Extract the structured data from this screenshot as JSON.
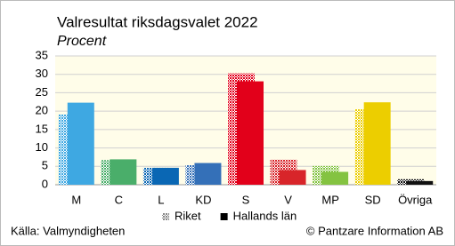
{
  "chart_data": {
    "type": "bar",
    "title": "Valresultat riksdagsvalet 2022",
    "subtitle": "Procent",
    "categories": [
      "M",
      "C",
      "L",
      "KD",
      "S",
      "V",
      "MP",
      "SD",
      "Övriga"
    ],
    "category_colors": [
      "#3ea8e2",
      "#4aae6a",
      "#0a67b4",
      "#3470b8",
      "#e2001a",
      "#d8252a",
      "#84c341",
      "#ecce00",
      "#111111"
    ],
    "series": [
      {
        "name": "Riket",
        "color": "#888888",
        "hatched": true,
        "values": [
          19.1,
          6.7,
          4.6,
          5.3,
          30.3,
          6.8,
          5.1,
          20.5,
          1.5
        ]
      },
      {
        "name": "Hallands län",
        "color": "#000000",
        "hatched": false,
        "values": [
          22.3,
          6.9,
          4.6,
          5.9,
          28.1,
          4.0,
          3.5,
          22.4,
          1.0
        ]
      }
    ],
    "ylim": [
      0,
      35
    ],
    "yticks": [
      0,
      5,
      10,
      15,
      20,
      25,
      30,
      35
    ],
    "grid": true,
    "source": "Källa: Valmyndigheten",
    "credit": "© Pantzare Information AB"
  }
}
